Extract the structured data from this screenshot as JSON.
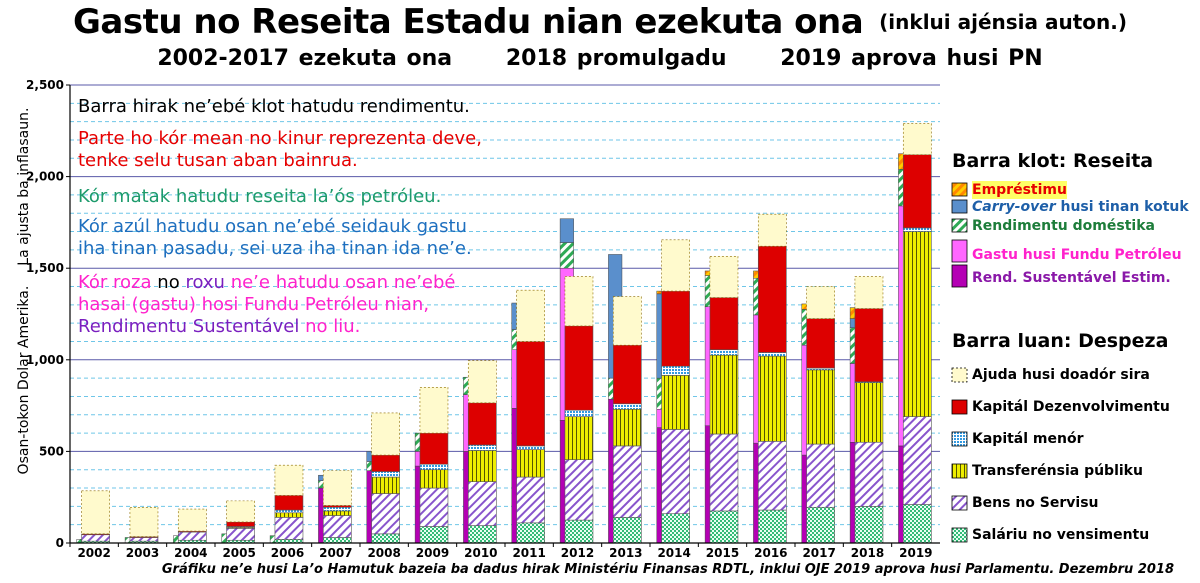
{
  "title": "Gastu no Reseita Estadu nian ezekuta ona",
  "title_suffix": "(inklui ajénsia auton.)",
  "subtitle_parts": [
    "2002-2017 ezekuta ona",
    "2018 promulgadu",
    "2019 aprova husi PN"
  ],
  "ylabel_parts": [
    "Osan-tokon Dolar Amerika.",
    "La ajusta ba inflasaun."
  ],
  "footnote": "Gráfiku ne’e husi La’o Hamutuk bazeia ba dadus hirak Ministériu Finansas RDTL, inklui OJE 2019 aprova husi Parlamentu. Dezembru 2018",
  "annotations": {
    "line1": "Barra hirak ne’ebé klot hatudu rendimentu.",
    "line2a": "Parte ho kór mean no kinur reprezenta deve,",
    "line2b": "tenke selu tusan aban bainrua.",
    "line3": "Kór matak hatudu reseita la’ós petróleu.",
    "line4a": "Kór azúl hatudu osan ne’ebé seidauk gastu",
    "line4b": "iha tinan pasadu, sei uza iha tinan ida ne’e.",
    "line5a_pink1": "Kór roza",
    "line5a_no": "no",
    "line5a_roxu": "roxu",
    "line5a_pink2": "ne’e hatudu osan ne’ebé",
    "line5b": "hasai (gastu) hosi Fundu Petróleu nian,",
    "line5c_purple": "Rendimentu Sustentável",
    "line5c_pink": "no liu."
  },
  "legend": {
    "revenue_title": "Barra klot: Reseita",
    "revenue_items": [
      {
        "label": "Empréstimu",
        "key": "loan",
        "text_color": "#e60000"
      },
      {
        "label_em": "Carry-over",
        "label_rest": "husi tinan kotuk",
        "key": "carry",
        "text_color": "#1e5fa8"
      },
      {
        "label": "Rendimentu doméstika",
        "key": "domestic",
        "text_color": "#1d7d3a"
      },
      {
        "label": "Gastu husi Fundu Petróleu",
        "key": "pf_excess",
        "text_color": "#ff22cc"
      },
      {
        "label": "Rend. Sustentável Estim.",
        "key": "esi",
        "text_color": "#8a18a8"
      }
    ],
    "expense_title": "Barra luan: Despeza",
    "expense_items": [
      {
        "label": "Ajuda husi doadór sira",
        "key": "donor"
      },
      {
        "label": "Kapitál Dezenvolvimentu",
        "key": "capdev"
      },
      {
        "label": "Kapitál menór",
        "key": "minor"
      },
      {
        "label": "Transferénsia públiku",
        "key": "transfer"
      },
      {
        "label": "Bens no Servisu",
        "key": "goods"
      },
      {
        "label": "Saláriu no vensimentu",
        "key": "salary"
      }
    ]
  },
  "colors": {
    "esi": "#b400b4",
    "pf_excess": "#ff66ff",
    "domestic": "#2eaa55",
    "carry": "#5a8fcc",
    "loan": "#ff9900",
    "salary": "#33bb77",
    "goods": "#8855cc",
    "transfer": "#d8d800",
    "minor": "#4ba6e8",
    "capdev": "#dd0000",
    "donor": "#fffacd"
  },
  "chart_data": {
    "type": "bar",
    "ylim": [
      0,
      2500
    ],
    "yticks": [
      "0",
      "500",
      "1,000",
      "1,500",
      "2,000",
      "2,500"
    ],
    "ytick_values": [
      0,
      500,
      1000,
      1500,
      2000,
      2500
    ],
    "categories": [
      "2002",
      "2003",
      "2004",
      "2005",
      "2006",
      "2007",
      "2008",
      "2009",
      "2010",
      "2011",
      "2012",
      "2013",
      "2014",
      "2015",
      "2016",
      "2017",
      "2018",
      "2019"
    ],
    "revenue": {
      "esi": [
        0,
        0,
        0,
        0,
        0,
        300,
        395,
        420,
        500,
        735,
        670,
        785,
        630,
        640,
        545,
        480,
        550,
        530
      ],
      "pf_excess": [
        0,
        0,
        0,
        0,
        0,
        0,
        0,
        80,
        310,
        320,
        830,
        0,
        100,
        650,
        700,
        600,
        430,
        1310
      ],
      "domestic": [
        20,
        30,
        40,
        50,
        40,
        40,
        50,
        100,
        95,
        110,
        140,
        115,
        170,
        170,
        200,
        195,
        195,
        200
      ],
      "carry": [
        0,
        0,
        0,
        0,
        0,
        30,
        55,
        0,
        0,
        145,
        130,
        675,
        460,
        0,
        0,
        0,
        50,
        0
      ],
      "loan": [
        0,
        0,
        0,
        0,
        0,
        0,
        0,
        0,
        0,
        0,
        0,
        0,
        15,
        25,
        40,
        30,
        60,
        85
      ]
    },
    "expense": {
      "salary": [
        10,
        10,
        15,
        15,
        20,
        30,
        50,
        90,
        95,
        110,
        125,
        140,
        160,
        175,
        180,
        195,
        200,
        210
      ],
      "goods": [
        35,
        20,
        45,
        65,
        120,
        120,
        220,
        210,
        240,
        250,
        330,
        390,
        460,
        420,
        375,
        345,
        350,
        480
      ],
      "transfer": [
        0,
        0,
        0,
        5,
        25,
        25,
        90,
        100,
        170,
        150,
        235,
        200,
        295,
        430,
        465,
        405,
        325,
        1010
      ],
      "minor": [
        0,
        0,
        0,
        5,
        15,
        20,
        30,
        30,
        30,
        20,
        35,
        30,
        50,
        30,
        20,
        10,
        5,
        20
      ],
      "capdev": [
        5,
        5,
        5,
        25,
        80,
        10,
        90,
        170,
        230,
        570,
        460,
        320,
        410,
        285,
        580,
        270,
        400,
        400
      ],
      "donor": [
        235,
        160,
        120,
        115,
        165,
        190,
        230,
        250,
        230,
        280,
        270,
        265,
        280,
        225,
        175,
        175,
        175,
        170
      ]
    }
  }
}
